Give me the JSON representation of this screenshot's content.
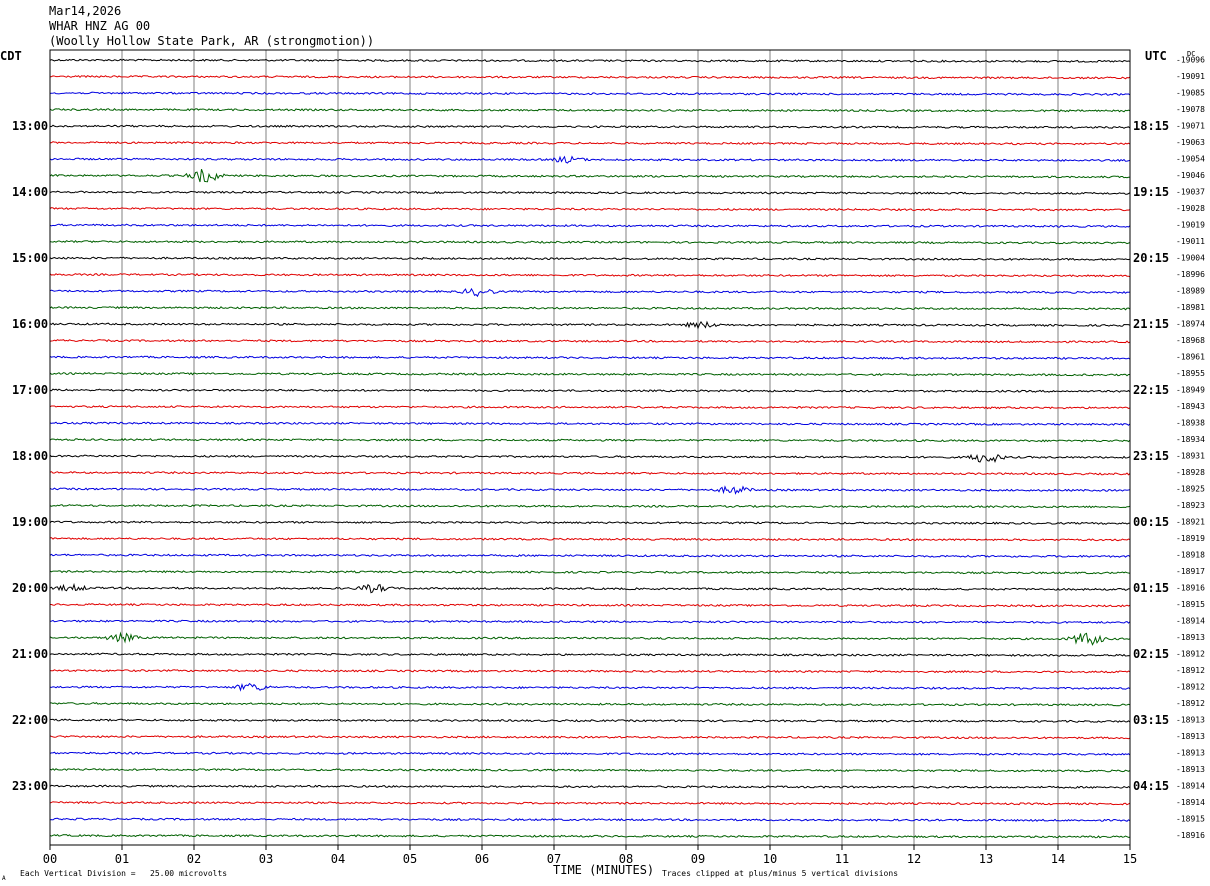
{
  "header": {
    "date": "Mar14,2026",
    "channel": "WHAR HNZ AG 00",
    "station": "(Woolly Hollow State Park, AR (strongmotion))"
  },
  "left_timezone": "CDT",
  "right_timezone": "UTC",
  "dc_label": "DC",
  "footer": {
    "x_axis_title": "TIME (MINUTES)",
    "scale_note": "Each Vertical Division =   25.00 microvolts",
    "clip_note": "Traces clipped at plus/minus 5 vertical divisions",
    "corner_mark": "A"
  },
  "colors": {
    "trace_cycle": [
      "#000000",
      "#e00000",
      "#0000e0",
      "#006000"
    ],
    "grid": "#808080",
    "frame": "#000000"
  },
  "chart_data": {
    "type": "line",
    "description": "helicorder",
    "x_ticks": [
      "00",
      "01",
      "02",
      "03",
      "04",
      "05",
      "06",
      "07",
      "08",
      "09",
      "10",
      "11",
      "12",
      "13",
      "14",
      "15"
    ],
    "xlim": [
      0,
      15
    ],
    "rows": 48,
    "left_time_labels": [
      {
        "row": 4,
        "label": "13:00"
      },
      {
        "row": 8,
        "label": "14:00"
      },
      {
        "row": 12,
        "label": "15:00"
      },
      {
        "row": 16,
        "label": "16:00"
      },
      {
        "row": 20,
        "label": "17:00"
      },
      {
        "row": 24,
        "label": "18:00"
      },
      {
        "row": 28,
        "label": "19:00"
      },
      {
        "row": 32,
        "label": "20:00"
      },
      {
        "row": 36,
        "label": "21:00"
      },
      {
        "row": 40,
        "label": "22:00"
      },
      {
        "row": 44,
        "label": "23:00"
      }
    ],
    "right_time_labels": [
      {
        "row": 4,
        "label": "18:15"
      },
      {
        "row": 8,
        "label": "19:15"
      },
      {
        "row": 12,
        "label": "20:15"
      },
      {
        "row": 16,
        "label": "21:15"
      },
      {
        "row": 20,
        "label": "22:15"
      },
      {
        "row": 24,
        "label": "23:15"
      },
      {
        "row": 28,
        "label": "00:15"
      },
      {
        "row": 32,
        "label": "01:15"
      },
      {
        "row": 36,
        "label": "02:15"
      },
      {
        "row": 40,
        "label": "03:15"
      },
      {
        "row": 44,
        "label": "04:15"
      }
    ],
    "dc_offsets": [
      "-19096",
      "-19091",
      "-19085",
      "-19078",
      "-19071",
      "-19063",
      "-19054",
      "-19046",
      "-19037",
      "-19028",
      "-19019",
      "-19011",
      "-19004",
      "-18996",
      "-18989",
      "-18981",
      "-18974",
      "-18968",
      "-18961",
      "-18955",
      "-18949",
      "-18943",
      "-18938",
      "-18934",
      "-18931",
      "-18928",
      "-18925",
      "-18923",
      "-18921",
      "-18919",
      "-18918",
      "-18917",
      "-18916",
      "-18915",
      "-18914",
      "-18913",
      "-18912",
      "-18912",
      "-18912",
      "-18912",
      "-18913",
      "-18913",
      "-18913",
      "-18913",
      "-18914",
      "-18914",
      "-18915",
      "-18916"
    ],
    "events": [
      {
        "row": 7,
        "minute": 2.15,
        "amplitude": 7
      },
      {
        "row": 6,
        "minute": 7.2,
        "amplitude": 3
      },
      {
        "row": 14,
        "minute": 5.95,
        "amplitude": 4
      },
      {
        "row": 16,
        "minute": 9.05,
        "amplitude": 3
      },
      {
        "row": 24,
        "minute": 13.0,
        "amplitude": 6
      },
      {
        "row": 26,
        "minute": 9.5,
        "amplitude": 4
      },
      {
        "row": 32,
        "minute": 0.3,
        "amplitude": 3
      },
      {
        "row": 32,
        "minute": 4.5,
        "amplitude": 4
      },
      {
        "row": 35,
        "minute": 1.0,
        "amplitude": 4
      },
      {
        "row": 35,
        "minute": 14.4,
        "amplitude": 7
      },
      {
        "row": 38,
        "minute": 2.8,
        "amplitude": 4
      }
    ]
  }
}
